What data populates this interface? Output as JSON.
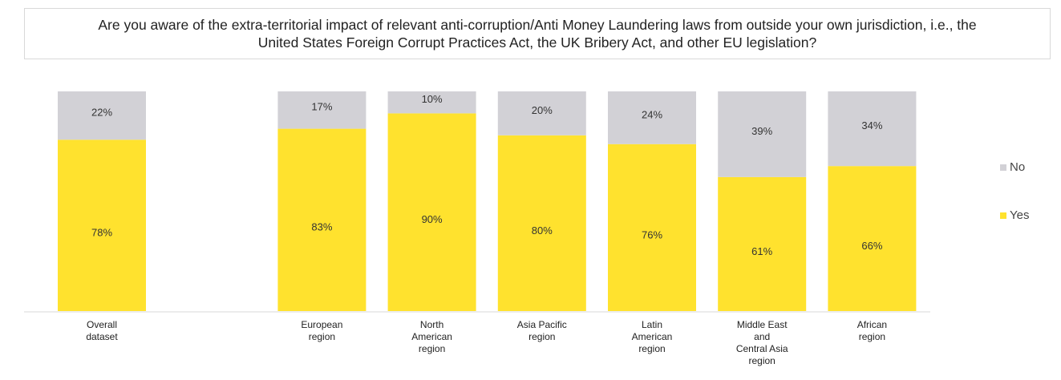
{
  "chart_data": {
    "type": "stacked_bar",
    "title": "Are you aware of the extra-territorial impact of relevant anti-corruption/Anti Money Laundering laws from outside your own jurisdiction, i.e., the United States Foreign Corrupt Practices Act, the UK Bribery Act, and other EU legislation?",
    "categories": [
      "Overall\ndataset",
      null,
      "European\nregion",
      "North\nAmerican\nregion",
      "Asia Pacific\nregion",
      "Latin\nAmerican\nregion",
      "Middle East\nand\nCentral Asia\nregion",
      "African\nregion"
    ],
    "series": [
      {
        "name": "Yes",
        "color": "#ffe22e",
        "values": [
          78,
          null,
          83,
          90,
          80,
          76,
          61,
          66
        ],
        "value_labels": [
          "78%",
          null,
          "83%",
          "90%",
          "80%",
          "76%",
          "61%",
          "66%"
        ]
      },
      {
        "name": "No",
        "color": "#d2d1d6",
        "values": [
          22,
          null,
          17,
          10,
          20,
          24,
          39,
          34
        ],
        "value_labels": [
          "22%",
          null,
          "17%",
          "10%",
          "20%",
          "24%",
          "39%",
          "34%"
        ]
      }
    ],
    "ylim": [
      0,
      100
    ],
    "legend": "right"
  }
}
